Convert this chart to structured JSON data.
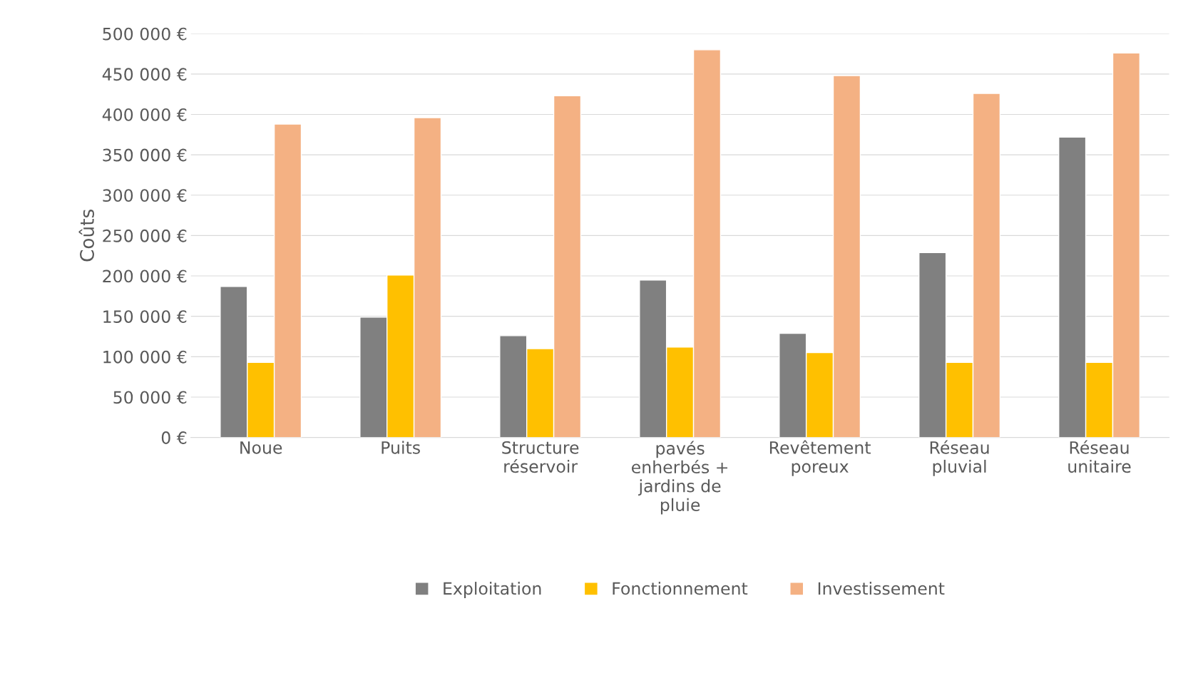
{
  "chart_data": {
    "type": "bar",
    "ylabel": "Coûts",
    "categories": [
      "Noue",
      "Puits",
      "Structure\nréservoir",
      "pavés\nenherbés +\njardins de\npluie",
      "Revêtement\nporeux",
      "Réseau\npluvial",
      "Réseau\nunitaire"
    ],
    "series": [
      {
        "name": "Exploitation",
        "color": "#808080",
        "values": [
          187000,
          149000,
          126000,
          195000,
          129000,
          229000,
          372000
        ]
      },
      {
        "name": "Fonctionnement",
        "color": "#ffc000",
        "values": [
          93000,
          201000,
          110000,
          112000,
          105000,
          93000,
          93000
        ]
      },
      {
        "name": "Investissement",
        "color": "#f4b183",
        "values": [
          388000,
          396000,
          423000,
          480000,
          448000,
          426000,
          476000
        ]
      }
    ],
    "ylim": [
      0,
      500000
    ],
    "yticks": [
      {
        "value": 0,
        "label": "0 €"
      },
      {
        "value": 50000,
        "label": "50 000 €"
      },
      {
        "value": 100000,
        "label": "100 000 €"
      },
      {
        "value": 150000,
        "label": "150 000 €"
      },
      {
        "value": 200000,
        "label": "200 000 €"
      },
      {
        "value": 250000,
        "label": "250 000 €"
      },
      {
        "value": 300000,
        "label": "300 000 €"
      },
      {
        "value": 350000,
        "label": "350 000 €"
      },
      {
        "value": 400000,
        "label": "400 000 €"
      },
      {
        "value": 450000,
        "label": "450 000 €"
      },
      {
        "value": 500000,
        "label": "500 000 €"
      }
    ],
    "grid": "y",
    "legend": "bottom"
  }
}
